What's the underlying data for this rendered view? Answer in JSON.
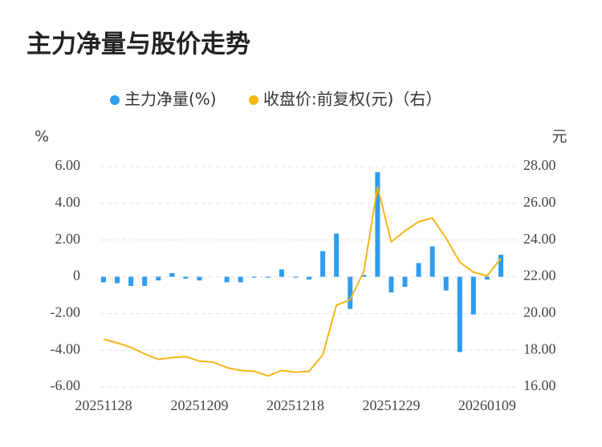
{
  "chart_data": {
    "type": "bar",
    "title": "主力净量与股价走势",
    "y_label": "%",
    "y2_label": "元",
    "categories": [
      "20251128",
      null,
      null,
      null,
      null,
      null,
      null,
      "20251209",
      null,
      null,
      null,
      null,
      null,
      null,
      "20251218",
      null,
      null,
      null,
      null,
      null,
      null,
      "20251229",
      null,
      null,
      null,
      null,
      null,
      null,
      "20260109",
      null
    ],
    "series": [
      {
        "name": "主力净量(%)",
        "type": "bar",
        "color": "#2e9cf0",
        "values": [
          -0.3,
          -0.35,
          -0.5,
          -0.5,
          -0.2,
          0.2,
          -0.1,
          -0.2,
          0,
          -0.3,
          -0.3,
          -0.05,
          -0.05,
          0.4,
          -0.05,
          -0.15,
          1.4,
          2.35,
          -1.75,
          0.1,
          5.7,
          -0.85,
          -0.55,
          0.75,
          1.65,
          -0.75,
          -4.1,
          -2.05,
          -0.15,
          1.2
        ]
      },
      {
        "name": "收盘价:前复权(元)（右）",
        "type": "line",
        "axis": "y2",
        "color": "#f5b617",
        "values": [
          18.6,
          18.4,
          18.15,
          17.8,
          17.5,
          17.6,
          17.65,
          17.4,
          17.35,
          17.05,
          16.9,
          16.85,
          16.6,
          16.9,
          16.8,
          16.85,
          17.75,
          20.45,
          20.75,
          22.3,
          26.9,
          23.9,
          24.5,
          25.0,
          25.2,
          24.1,
          22.8,
          22.25,
          22.05,
          23.0
        ]
      }
    ],
    "ylim": [
      -6,
      6
    ],
    "yticks": [
      {
        "value": -6,
        "label": "-6.00"
      },
      {
        "value": -4,
        "label": "-4.00"
      },
      {
        "value": -2,
        "label": "-2.00"
      },
      0,
      {
        "value": 2,
        "label": "2.00"
      },
      {
        "value": 4,
        "label": "4.00"
      },
      {
        "value": 6,
        "label": "6.00"
      }
    ],
    "y2lim": [
      16,
      28
    ],
    "y2ticks": [
      {
        "value": 16,
        "label": "16.00"
      },
      {
        "value": 18,
        "label": "18.00"
      },
      {
        "value": 20,
        "label": "20.00"
      },
      {
        "value": 22,
        "label": "22.00"
      },
      {
        "value": 24,
        "label": "24.00"
      },
      {
        "value": 26,
        "label": "26.00"
      },
      {
        "value": 28,
        "label": "28.00"
      }
    ],
    "grid": true,
    "legend": "top"
  }
}
